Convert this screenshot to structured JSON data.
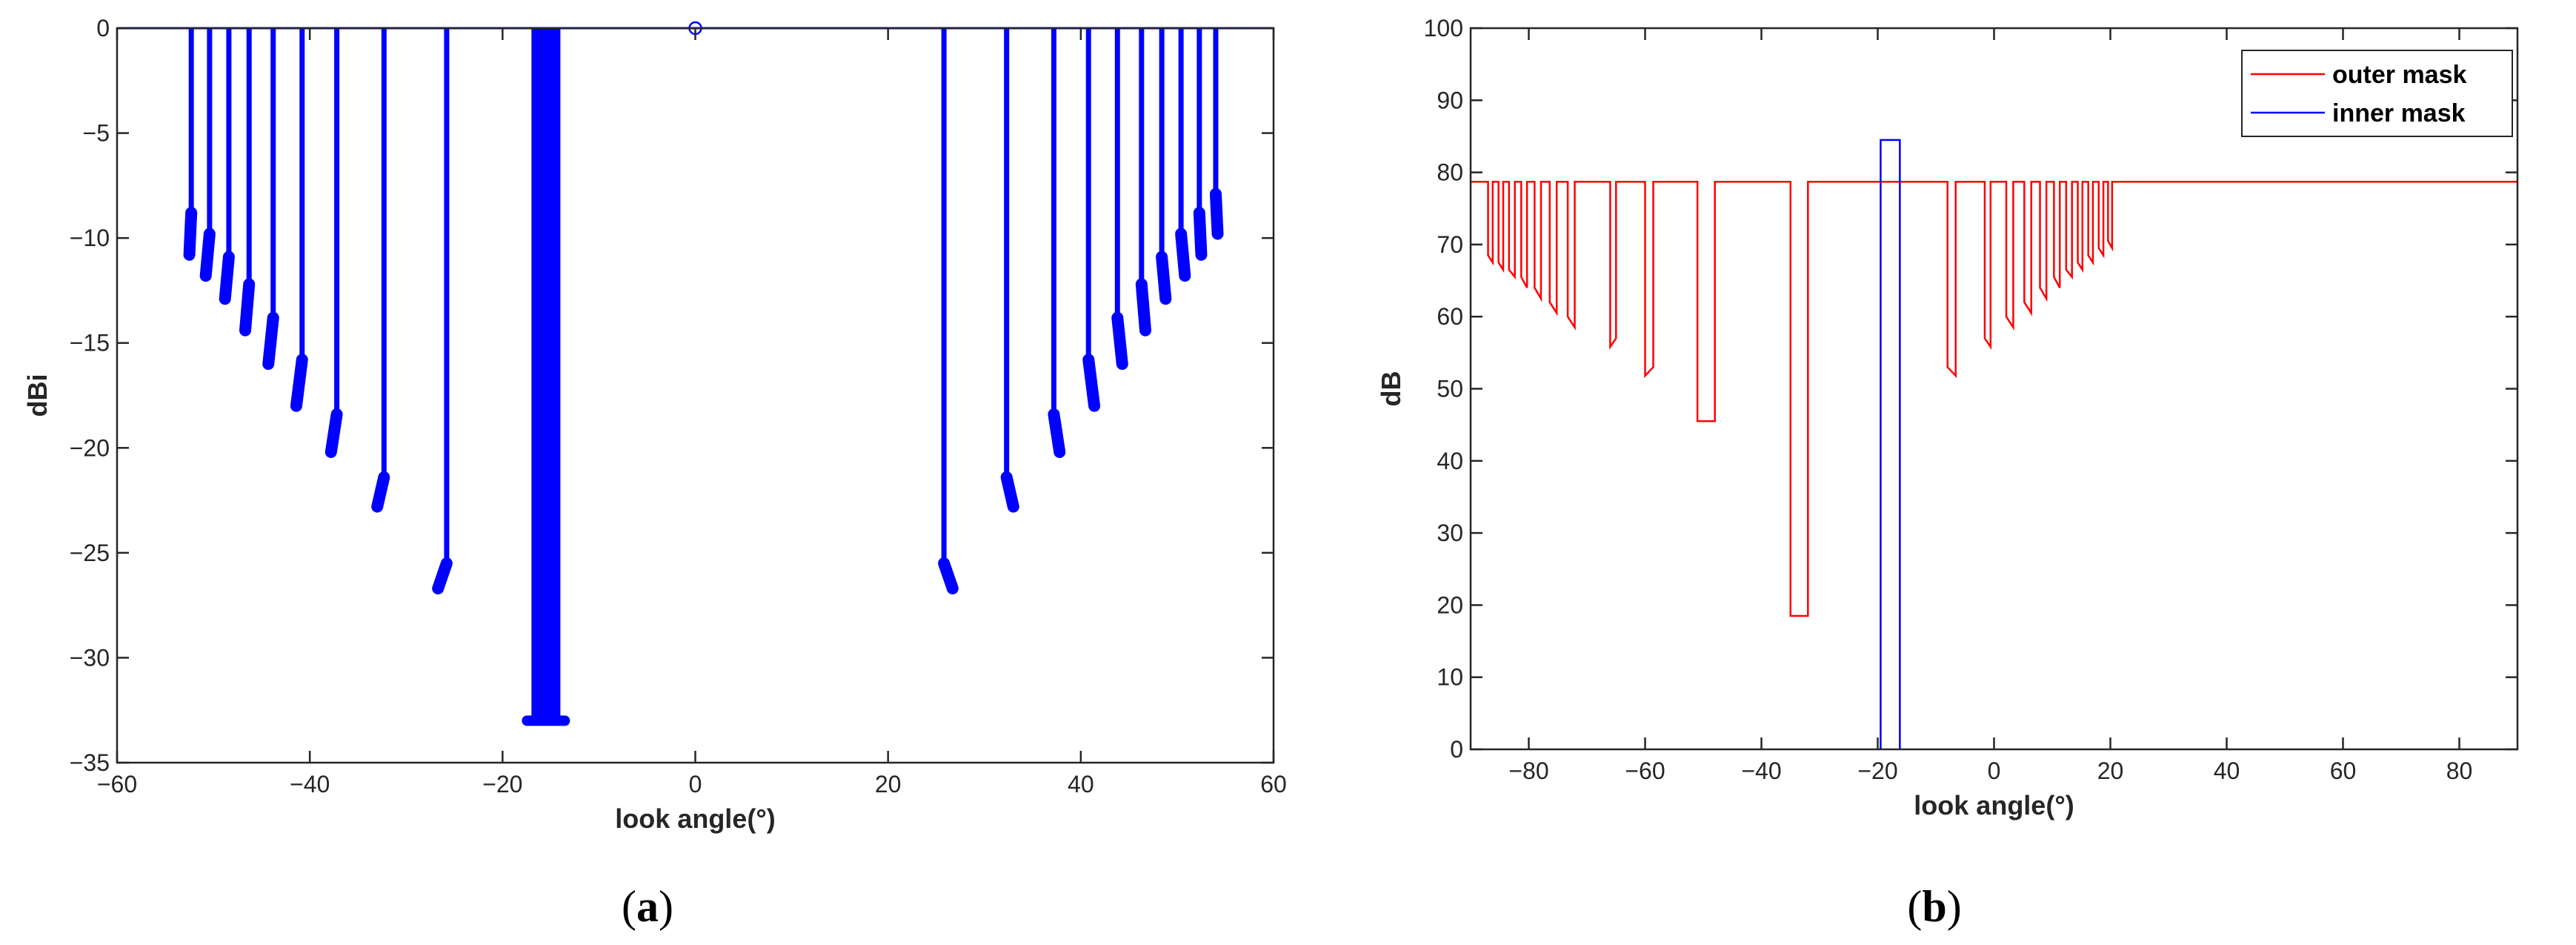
{
  "chart_data": [
    {
      "type": "line",
      "caption_letter": "a",
      "xlabel": "look angle(°)",
      "ylabel": "dBi",
      "xlim": [
        -60,
        60
      ],
      "ylim": [
        -35,
        0
      ],
      "xticks": [
        -60,
        -40,
        -20,
        0,
        20,
        40,
        60
      ],
      "yticks": [
        0,
        -5,
        -10,
        -15,
        -20,
        -25,
        -30,
        -35
      ],
      "grid": false,
      "color": "#0000ff",
      "marker_point": {
        "x": 0,
        "y": 0
      },
      "series": [
        {
          "values": [
            [
              -52.3,
              0
            ],
            [
              -52.3,
              -8.8
            ],
            [
              -52.5,
              -10.8
            ]
          ]
        },
        {
          "values": [
            [
              -50.4,
              0
            ],
            [
              -50.4,
              -9.8
            ],
            [
              -50.8,
              -11.8
            ]
          ]
        },
        {
          "values": [
            [
              -48.4,
              0
            ],
            [
              -48.4,
              -10.9
            ],
            [
              -48.8,
              -12.9
            ]
          ]
        },
        {
          "values": [
            [
              -46.3,
              0
            ],
            [
              -46.3,
              -12.2
            ],
            [
              -46.7,
              -14.4
            ]
          ]
        },
        {
          "values": [
            [
              -43.8,
              0
            ],
            [
              -43.8,
              -13.8
            ],
            [
              -44.3,
              -16.0
            ]
          ]
        },
        {
          "values": [
            [
              -40.8,
              0
            ],
            [
              -40.8,
              -15.8
            ],
            [
              -41.4,
              -18.0
            ]
          ]
        },
        {
          "values": [
            [
              -37.2,
              0
            ],
            [
              -37.2,
              -18.4
            ],
            [
              -37.8,
              -20.2
            ]
          ]
        },
        {
          "values": [
            [
              -32.3,
              0
            ],
            [
              -32.3,
              -21.4
            ],
            [
              -33.0,
              -22.8
            ]
          ]
        },
        {
          "values": [
            [
              -25.8,
              0
            ],
            [
              -25.8,
              -25.5
            ],
            [
              -26.7,
              -26.7
            ]
          ]
        },
        {
          "values": [
            [
              -17.0,
              0
            ],
            [
              -17.0,
              -33.0
            ],
            [
              -14.0,
              -33.0
            ],
            [
              -14.0,
              0
            ]
          ]
        },
        {
          "values": [
            [
              25.8,
              0
            ],
            [
              25.8,
              -25.5
            ],
            [
              26.7,
              -26.7
            ]
          ]
        },
        {
          "values": [
            [
              32.3,
              0
            ],
            [
              32.3,
              -21.4
            ],
            [
              33.0,
              -22.8
            ]
          ]
        },
        {
          "values": [
            [
              37.2,
              0
            ],
            [
              37.2,
              -18.4
            ],
            [
              37.8,
              -20.2
            ]
          ]
        },
        {
          "values": [
            [
              40.8,
              0
            ],
            [
              40.8,
              -15.8
            ],
            [
              41.4,
              -18.0
            ]
          ]
        },
        {
          "values": [
            [
              43.8,
              0
            ],
            [
              43.8,
              -13.8
            ],
            [
              44.3,
              -16.0
            ]
          ]
        },
        {
          "values": [
            [
              46.3,
              0
            ],
            [
              46.3,
              -12.2
            ],
            [
              46.7,
              -14.4
            ]
          ]
        },
        {
          "values": [
            [
              48.4,
              0
            ],
            [
              48.4,
              -10.9
            ],
            [
              48.8,
              -12.9
            ]
          ]
        },
        {
          "values": [
            [
              50.4,
              0
            ],
            [
              50.4,
              -9.8
            ],
            [
              50.8,
              -11.8
            ]
          ]
        },
        {
          "values": [
            [
              52.3,
              0
            ],
            [
              52.3,
              -8.8
            ],
            [
              52.5,
              -10.8
            ]
          ]
        },
        {
          "values": [
            [
              54.0,
              0
            ],
            [
              54.0,
              -7.9
            ],
            [
              54.2,
              -9.8
            ]
          ]
        }
      ]
    },
    {
      "type": "line",
      "caption_letter": "b",
      "xlabel": "look angle(°)",
      "ylabel": "dB",
      "xlim": [
        -90,
        90
      ],
      "ylim": [
        0,
        100
      ],
      "xticks": [
        -80,
        -60,
        -40,
        -20,
        0,
        20,
        40,
        60,
        80
      ],
      "yticks": [
        0,
        10,
        20,
        30,
        40,
        50,
        60,
        70,
        80,
        90,
        100
      ],
      "grid": false,
      "legend_position": "top-right",
      "series": [
        {
          "name": "outer mask",
          "color": "#ff0000",
          "baseline": 78.7,
          "notches": [
            {
              "x0": -87.0,
              "x1": -86.2,
              "y0": 68.5,
              "y1": 67.5
            },
            {
              "x0": -85.2,
              "x1": -84.4,
              "y0": 67.5,
              "y1": 66.5
            },
            {
              "x0": -83.4,
              "x1": -82.4,
              "y0": 66.5,
              "y1": 65.5
            },
            {
              "x0": -81.3,
              "x1": -80.3,
              "y0": 65.5,
              "y1": 64.0
            },
            {
              "x0": -79.0,
              "x1": -77.9,
              "y0": 64.0,
              "y1": 62.5
            },
            {
              "x0": -76.4,
              "x1": -75.2,
              "y0": 62.0,
              "y1": 60.5
            },
            {
              "x0": -73.3,
              "x1": -72.1,
              "y0": 60.0,
              "y1": 58.5
            },
            {
              "x0": -66.0,
              "x1": -65.0,
              "y0": 55.8,
              "y1": 57.0
            },
            {
              "x0": -60.0,
              "x1": -58.6,
              "y0": 51.8,
              "y1": 53.0
            },
            {
              "x0": -51.0,
              "x1": -48.0,
              "y0": 45.5,
              "y1": 45.5
            },
            {
              "x0": -35.0,
              "x1": -32.0,
              "y0": 18.5,
              "y1": 18.5
            },
            {
              "x0": -8.0,
              "x1": -6.6,
              "y0": 53.0,
              "y1": 51.8
            },
            {
              "x0": -1.6,
              "x1": -0.6,
              "y0": 57.0,
              "y1": 55.8
            },
            {
              "x0": 2.1,
              "x1": 3.3,
              "y0": 60.0,
              "y1": 58.5
            },
            {
              "x0": 5.2,
              "x1": 6.4,
              "y0": 62.0,
              "y1": 60.5
            },
            {
              "x0": 7.9,
              "x1": 9.0,
              "y0": 64.0,
              "y1": 62.5
            },
            {
              "x0": 10.3,
              "x1": 11.3,
              "y0": 65.5,
              "y1": 64.0
            },
            {
              "x0": 12.4,
              "x1": 13.4,
              "y0": 66.5,
              "y1": 65.5
            },
            {
              "x0": 14.4,
              "x1": 15.2,
              "y0": 67.5,
              "y1": 66.5
            },
            {
              "x0": 16.2,
              "x1": 17.0,
              "y0": 68.5,
              "y1": 67.5
            },
            {
              "x0": 18.0,
              "x1": 18.8,
              "y0": 69.5,
              "y1": 68.5
            },
            {
              "x0": 19.6,
              "x1": 20.3,
              "y0": 70.5,
              "y1": 69.5
            }
          ]
        },
        {
          "name": "inner mask",
          "color": "#0000ff",
          "values": [
            [
              -19.5,
              0
            ],
            [
              -19.5,
              84.5
            ],
            [
              -16.2,
              84.5
            ],
            [
              -16.2,
              0
            ]
          ]
        }
      ]
    }
  ]
}
